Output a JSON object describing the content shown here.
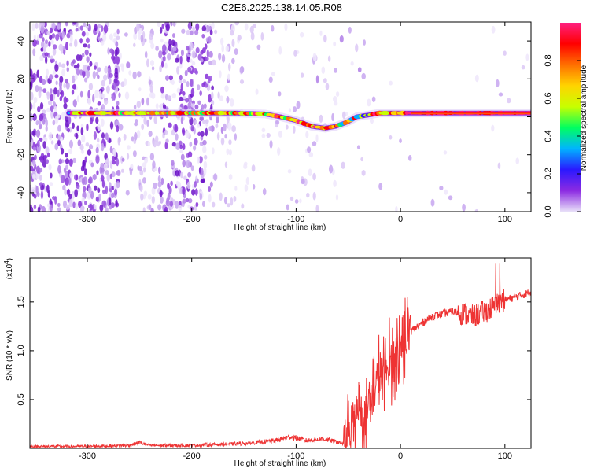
{
  "title": "C2E6.2025.138.14.05.R08",
  "chart_data": [
    {
      "type": "heatmap",
      "xlabel": "Height of straight line (km)",
      "ylabel": "Frequency (Hz)",
      "xlim": [
        -355,
        125
      ],
      "ylim": [
        -50,
        50
      ],
      "xticks": [
        -300,
        -200,
        -100,
        0,
        100
      ],
      "yticks": [
        -40,
        -20,
        0,
        20,
        40
      ],
      "colorbar_label": "Normalized spectral amplitude",
      "colorbar_range": [
        0,
        1
      ],
      "colorbar_ticks": [
        "0.0",
        "0.2",
        "0.4",
        "0.6",
        "0.8"
      ],
      "colormap": [
        "#e8e0f8",
        "#8c2be2",
        "#2a18ff",
        "#00b4ff",
        "#00ff60",
        "#c8ff00",
        "#ffd400",
        "#ff7000",
        "#ff0000",
        "#ff2080"
      ],
      "ridge": [
        {
          "x": -315,
          "y": 2
        },
        {
          "x": -275,
          "y": 2
        },
        {
          "x": -250,
          "y": 2
        },
        {
          "x": -200,
          "y": 2
        },
        {
          "x": -160,
          "y": 2
        },
        {
          "x": -130,
          "y": 1.5
        },
        {
          "x": -115,
          "y": 0
        },
        {
          "x": -100,
          "y": -2
        },
        {
          "x": -85,
          "y": -5
        },
        {
          "x": -72,
          "y": -6
        },
        {
          "x": -62,
          "y": -5
        },
        {
          "x": -52,
          "y": -3
        },
        {
          "x": -42,
          "y": 0
        },
        {
          "x": -30,
          "y": 1
        },
        {
          "x": -20,
          "y": 2
        },
        {
          "x": 0,
          "y": 2
        },
        {
          "x": 125,
          "y": 2
        }
      ]
    },
    {
      "type": "line",
      "xlabel": "Height of straight line (km)",
      "ylabel": "SNR (10 * v/v)",
      "multiplier_label": "(x10",
      "multiplier_exp": "4",
      "xlim": [
        -355,
        125
      ],
      "ylim": [
        0,
        1.95
      ],
      "xticks": [
        -300,
        -200,
        -100,
        0,
        100
      ],
      "yticks": [
        0.5,
        1.0,
        1.5
      ],
      "ytick_labels": [
        "0.5",
        "1.0",
        "1.5"
      ],
      "series": [
        {
          "color": "#ee3333",
          "x": [
            -355,
            -300,
            -260,
            -250,
            -240,
            -200,
            -150,
            -120,
            -105,
            -90,
            -75,
            -55,
            -50,
            -45,
            -40,
            -35,
            -30,
            -25,
            -20,
            -15,
            -10,
            -5,
            0,
            10,
            20,
            30,
            40,
            50,
            60,
            70,
            80,
            90,
            95,
            100,
            110,
            125
          ],
          "y": [
            0.02,
            0.02,
            0.03,
            0.06,
            0.03,
            0.03,
            0.05,
            0.08,
            0.12,
            0.08,
            0.1,
            0.05,
            0.15,
            0.35,
            0.5,
            0.3,
            0.45,
            0.6,
            0.8,
            0.7,
            0.9,
            0.95,
            1.05,
            1.2,
            1.28,
            1.35,
            1.38,
            1.4,
            1.38,
            1.35,
            1.4,
            1.45,
            1.5,
            1.52,
            1.55,
            1.6
          ]
        }
      ]
    }
  ]
}
